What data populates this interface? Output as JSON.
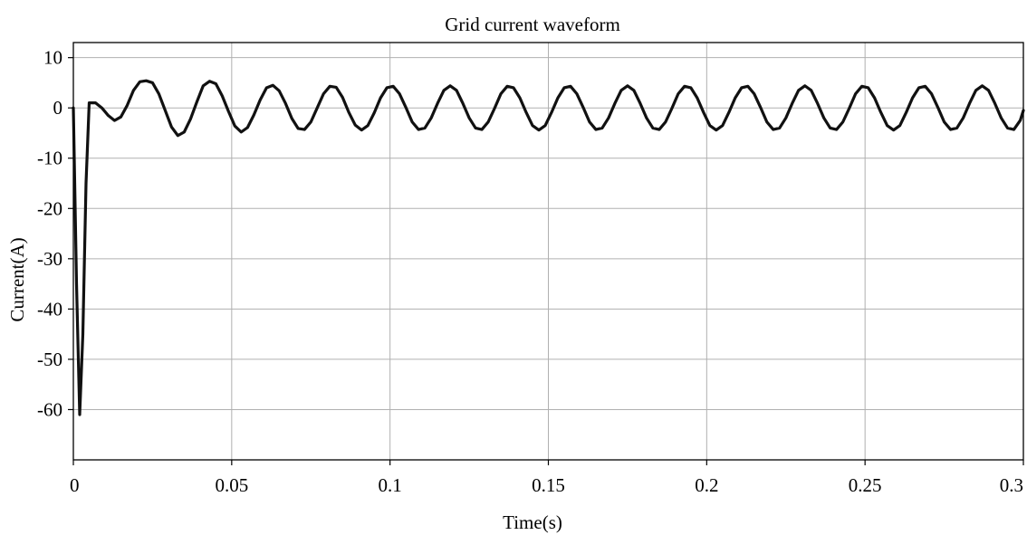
{
  "chart_data": {
    "type": "line",
    "title": "Grid current waveform",
    "xlabel": "Time(s)",
    "ylabel": "Current(A)",
    "xlim": [
      0,
      0.3
    ],
    "ylim": [
      -70,
      13
    ],
    "x_ticks": [
      0,
      0.05,
      0.1,
      0.15,
      0.2,
      0.25,
      0.3
    ],
    "x_tick_labels": [
      "0",
      "0.05",
      "0.1",
      "0.15",
      "0.2",
      "0.25",
      "0.3"
    ],
    "y_ticks": [
      10,
      0,
      -10,
      -20,
      -30,
      -40,
      -50,
      -60
    ],
    "y_tick_labels": [
      "10",
      "0",
      "-10",
      "-20",
      "-30",
      "-40",
      "-50",
      "-60"
    ],
    "grid": true,
    "legend": "none",
    "colors": {
      "line": "#111111",
      "grid": "#b0b0b0",
      "axes": "#000000",
      "background": "#ffffff"
    },
    "series": [
      {
        "x": [
          0,
          0.001,
          0.002,
          0.003,
          0.004,
          0.005,
          0.006,
          0.007,
          0.009,
          0.011,
          0.013,
          0.015,
          0.017,
          0.019,
          0.021,
          0.023,
          0.025,
          0.027,
          0.029,
          0.031,
          0.033,
          0.035,
          0.037,
          0.039,
          0.041,
          0.043,
          0.045,
          0.047,
          0.049,
          0.051,
          0.053,
          0.055,
          0.057,
          0.059,
          0.061,
          0.063,
          0.065,
          0.067,
          0.069,
          0.071,
          0.073,
          0.075,
          0.077,
          0.079,
          0.081,
          0.083,
          0.085,
          0.087,
          0.089,
          0.091,
          0.093,
          0.095,
          0.097,
          0.099,
          0.101,
          0.103,
          0.105,
          0.107,
          0.109,
          0.111,
          0.113,
          0.115,
          0.117,
          0.119,
          0.121,
          0.123,
          0.125,
          0.127,
          0.129,
          0.131,
          0.133,
          0.135,
          0.137,
          0.139,
          0.141,
          0.143,
          0.145,
          0.147,
          0.149,
          0.151,
          0.153,
          0.155,
          0.157,
          0.159,
          0.161,
          0.163,
          0.165,
          0.167,
          0.169,
          0.171,
          0.173,
          0.175,
          0.177,
          0.179,
          0.181,
          0.183,
          0.185,
          0.187,
          0.189,
          0.191,
          0.193,
          0.195,
          0.197,
          0.199,
          0.201,
          0.203,
          0.205,
          0.207,
          0.209,
          0.211,
          0.213,
          0.215,
          0.217,
          0.219,
          0.221,
          0.223,
          0.225,
          0.227,
          0.229,
          0.231,
          0.233,
          0.235,
          0.237,
          0.239,
          0.241,
          0.243,
          0.245,
          0.247,
          0.249,
          0.251,
          0.253,
          0.255,
          0.257,
          0.259,
          0.261,
          0.263,
          0.265,
          0.267,
          0.269,
          0.271,
          0.273,
          0.275,
          0.277,
          0.279,
          0.281,
          0.283,
          0.285,
          0.287,
          0.289,
          0.291,
          0.293,
          0.295,
          0.297,
          0.299,
          0.3
        ],
        "y": [
          0,
          -35,
          -61,
          -45,
          -15,
          1,
          1,
          1,
          0,
          -1.5,
          -2.5,
          -1.8,
          0.5,
          3.5,
          5.2,
          5.4,
          5,
          2.8,
          -0.5,
          -3.8,
          -5.5,
          -4.8,
          -2.2,
          1.2,
          4.4,
          5.3,
          4.8,
          2.4,
          -0.7,
          -3.6,
          -4.8,
          -3.9,
          -1.4,
          1.6,
          4,
          4.5,
          3.4,
          0.9,
          -2.1,
          -4.1,
          -4.3,
          -2.8,
          0,
          2.8,
          4.3,
          4.1,
          2.1,
          -0.9,
          -3.4,
          -4.4,
          -3.5,
          -1,
          2,
          4,
          4.3,
          2.8,
          0.1,
          -2.8,
          -4.3,
          -4,
          -2,
          0.9,
          3.5,
          4.4,
          3.5,
          0.9,
          -2,
          -4,
          -4.3,
          -2.8,
          -0.1,
          2.8,
          4.3,
          4,
          2,
          -0.9,
          -3.5,
          -4.4,
          -3.5,
          -0.9,
          2,
          4,
          4.3,
          2.8,
          0.1,
          -2.8,
          -4.3,
          -4,
          -2,
          0.9,
          3.5,
          4.4,
          3.5,
          0.9,
          -2,
          -4,
          -4.3,
          -2.8,
          -0.1,
          2.8,
          4.3,
          4,
          2,
          -0.9,
          -3.5,
          -4.4,
          -3.5,
          -0.9,
          2,
          4,
          4.3,
          2.8,
          0.1,
          -2.8,
          -4.3,
          -4,
          -2,
          0.9,
          3.5,
          4.4,
          3.5,
          0.9,
          -2,
          -4,
          -4.3,
          -2.8,
          -0.1,
          2.8,
          4.3,
          4,
          2,
          -0.9,
          -3.5,
          -4.4,
          -3.5,
          -0.9,
          2,
          4,
          4.3,
          2.8,
          0.1,
          -2.8,
          -4.3,
          -4,
          -2,
          0.9,
          3.5,
          4.4,
          3.5,
          0.9,
          -2,
          -4,
          -4.3,
          -2.5,
          -0.5
        ]
      }
    ]
  }
}
